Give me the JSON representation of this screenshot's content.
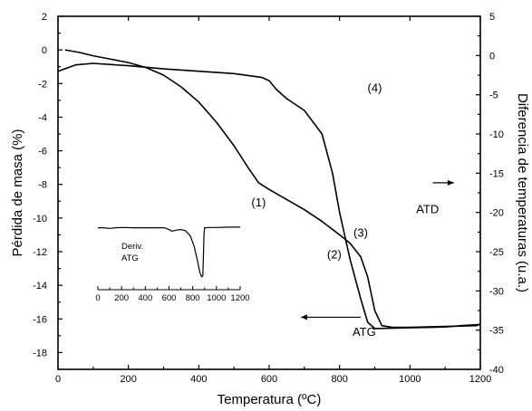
{
  "chart_data": {
    "type": "line",
    "xlabel": "Temperatura (ºC)",
    "ylabel_left": "Pérdida de masa (%)",
    "ylabel_right": "Diferencia de temperaturas (u.a.)",
    "xlim": [
      0,
      1200
    ],
    "ylim_left": [
      -19,
      2
    ],
    "ylim_right": [
      -40,
      5
    ],
    "x_ticks": [
      0,
      200,
      400,
      600,
      800,
      1000,
      1200
    ],
    "y_ticks_left": [
      2,
      0,
      -2,
      -4,
      -6,
      -8,
      -10,
      -12,
      -14,
      -16,
      -18
    ],
    "y_ticks_right": [
      5,
      0,
      -5,
      -10,
      -15,
      -20,
      -25,
      -30,
      -35,
      -40
    ],
    "series": [
      {
        "name": "ATG",
        "axis": "left",
        "points": [
          [
            20,
            0.0
          ],
          [
            60,
            -0.15
          ],
          [
            100,
            -0.35
          ],
          [
            150,
            -0.55
          ],
          [
            200,
            -0.75
          ],
          [
            250,
            -1.05
          ],
          [
            300,
            -1.5
          ],
          [
            350,
            -2.2
          ],
          [
            400,
            -3.1
          ],
          [
            450,
            -4.3
          ],
          [
            500,
            -5.7
          ],
          [
            540,
            -7.0
          ],
          [
            570,
            -7.9
          ],
          [
            600,
            -8.3
          ],
          [
            650,
            -8.9
          ],
          [
            700,
            -9.5
          ],
          [
            750,
            -10.2
          ],
          [
            800,
            -11.0
          ],
          [
            830,
            -11.5
          ],
          [
            860,
            -12.3
          ],
          [
            880,
            -13.5
          ],
          [
            900,
            -15.5
          ],
          [
            920,
            -16.4
          ],
          [
            950,
            -16.5
          ],
          [
            1000,
            -16.5
          ],
          [
            1100,
            -16.45
          ],
          [
            1190,
            -16.4
          ],
          [
            1200,
            -16.3
          ]
        ]
      },
      {
        "name": "ATD",
        "axis": "right",
        "points": [
          [
            0,
            -2.0
          ],
          [
            50,
            -1.2
          ],
          [
            100,
            -1.0
          ],
          [
            200,
            -1.3
          ],
          [
            300,
            -1.7
          ],
          [
            400,
            -2.0
          ],
          [
            500,
            -2.3
          ],
          [
            580,
            -2.8
          ],
          [
            600,
            -3.2
          ],
          [
            620,
            -4.3
          ],
          [
            650,
            -5.5
          ],
          [
            700,
            -7.0
          ],
          [
            750,
            -10.0
          ],
          [
            780,
            -15.0
          ],
          [
            800,
            -20.0
          ],
          [
            830,
            -26.0
          ],
          [
            860,
            -31.0
          ],
          [
            880,
            -34.0
          ],
          [
            900,
            -34.8
          ],
          [
            1000,
            -34.7
          ],
          [
            1100,
            -34.6
          ],
          [
            1150,
            -34.4
          ],
          [
            1195,
            -34.3
          ]
        ]
      }
    ],
    "annotations": [
      {
        "text": "(1)",
        "x": 570,
        "y": -9.3
      },
      {
        "text": "(2)",
        "x": 785,
        "y": -12.4
      },
      {
        "text": "(3)",
        "x": 860,
        "y": -11.1
      },
      {
        "text": "(4)",
        "x": 900,
        "y": -2.5
      },
      {
        "text": "ATD",
        "x": 1050,
        "y": -9.7
      },
      {
        "text": "ATG",
        "x": 870,
        "y": -17.0
      }
    ],
    "inset": {
      "label_line1": "Deriv.",
      "label_line2": "ATG",
      "x_ticks": [
        0,
        200,
        400,
        600,
        800,
        1000,
        1200
      ],
      "xlim": [
        0,
        1200
      ],
      "points": [
        [
          0,
          -1.0
        ],
        [
          50,
          -1.0
        ],
        [
          100,
          -1.1
        ],
        [
          150,
          -1.0
        ],
        [
          200,
          -0.95
        ],
        [
          300,
          -1.0
        ],
        [
          400,
          -1.0
        ],
        [
          500,
          -1.0
        ],
        [
          560,
          -1.0
        ],
        [
          600,
          -1.3
        ],
        [
          620,
          -1.55
        ],
        [
          640,
          -1.5
        ],
        [
          660,
          -1.4
        ],
        [
          700,
          -1.3
        ],
        [
          740,
          -1.5
        ],
        [
          780,
          -2.4
        ],
        [
          810,
          -4.0
        ],
        [
          840,
          -6.5
        ],
        [
          860,
          -8.5
        ],
        [
          875,
          -9.2
        ],
        [
          885,
          -9.0
        ],
        [
          890,
          -6.0
        ],
        [
          895,
          -2.0
        ],
        [
          900,
          -1.0
        ],
        [
          950,
          -0.95
        ],
        [
          1000,
          -0.95
        ],
        [
          1100,
          -0.9
        ],
        [
          1200,
          -0.9
        ]
      ]
    }
  }
}
